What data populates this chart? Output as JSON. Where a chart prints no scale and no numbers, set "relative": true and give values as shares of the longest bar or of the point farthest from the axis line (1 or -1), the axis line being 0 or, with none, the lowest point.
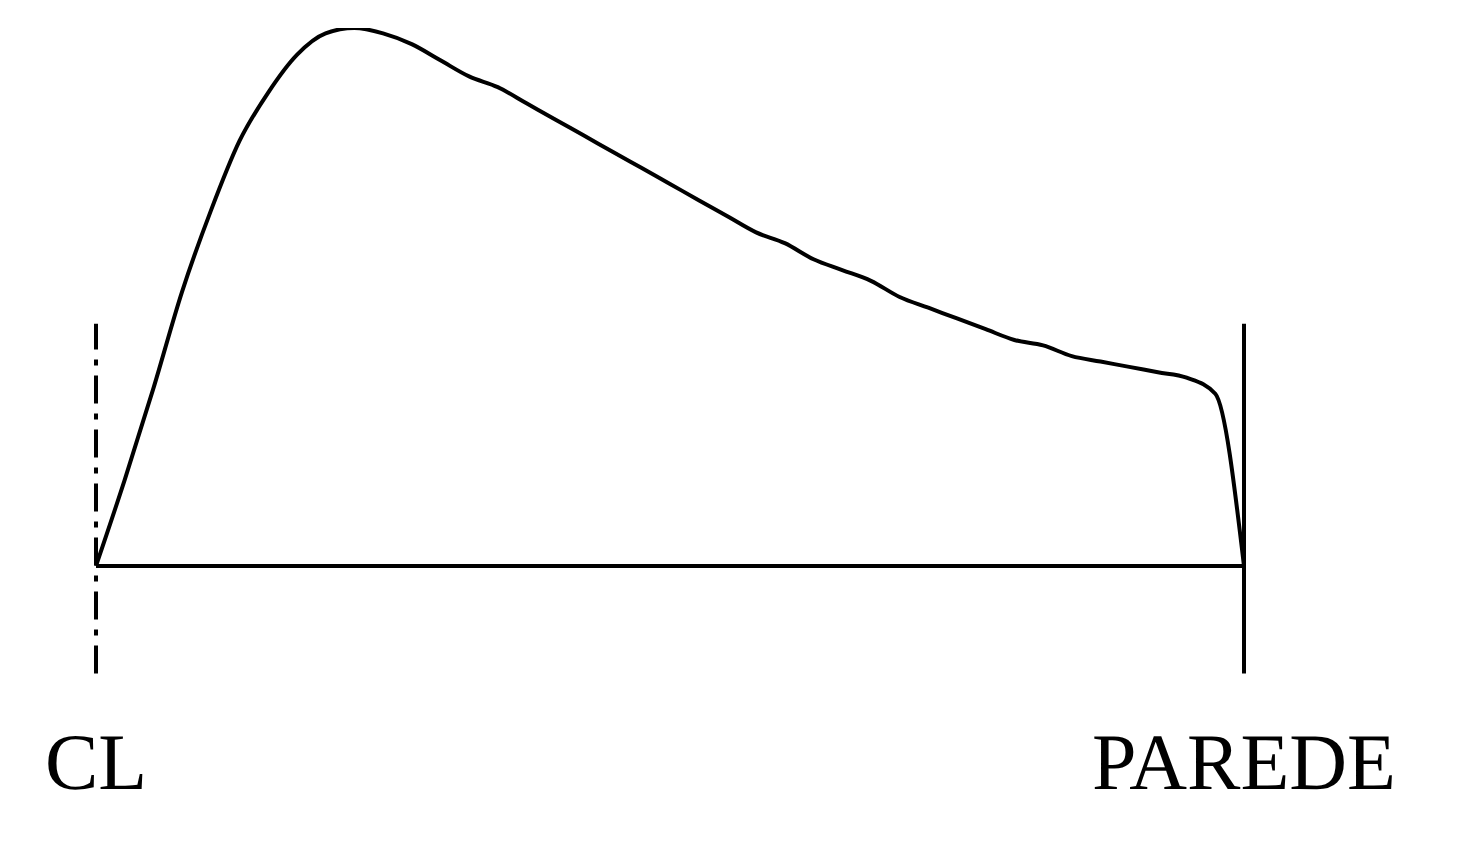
{
  "chart_data": {
    "type": "line",
    "relative": true,
    "color": "#000000",
    "marker": "none",
    "line_style": "solid",
    "categories": [
      "CL",
      null,
      null,
      null,
      null,
      null,
      null,
      null,
      null,
      null,
      null,
      null,
      null,
      null,
      null,
      null,
      null,
      null,
      null,
      null,
      null,
      null,
      null,
      null,
      null,
      null,
      null,
      null,
      null,
      null,
      null,
      null,
      null,
      null,
      null,
      null,
      null,
      null,
      null,
      null,
      "PAREDE"
    ],
    "values": [
      0,
      0.16,
      0.33,
      0.51,
      0.66,
      0.79,
      0.88,
      0.95,
      0.99,
      1,
      0.99,
      0.97,
      0.94,
      0.91,
      0.89,
      0.86,
      0.83,
      0.8,
      0.77,
      0.74,
      0.71,
      0.68,
      0.65,
      0.62,
      0.6,
      0.57,
      0.55,
      0.53,
      0.5,
      0.48,
      0.46,
      0.44,
      0.42,
      0.41,
      0.39,
      0.38,
      0.37,
      0.36,
      0.35,
      0.32,
      0
    ],
    "ref_lines": [
      {
        "axis": "x",
        "value": "CL",
        "line_style": "dashed",
        "color": "#000000"
      },
      {
        "axis": "x",
        "value": "PAREDE",
        "line_style": "solid",
        "color": "#000000"
      }
    ]
  }
}
